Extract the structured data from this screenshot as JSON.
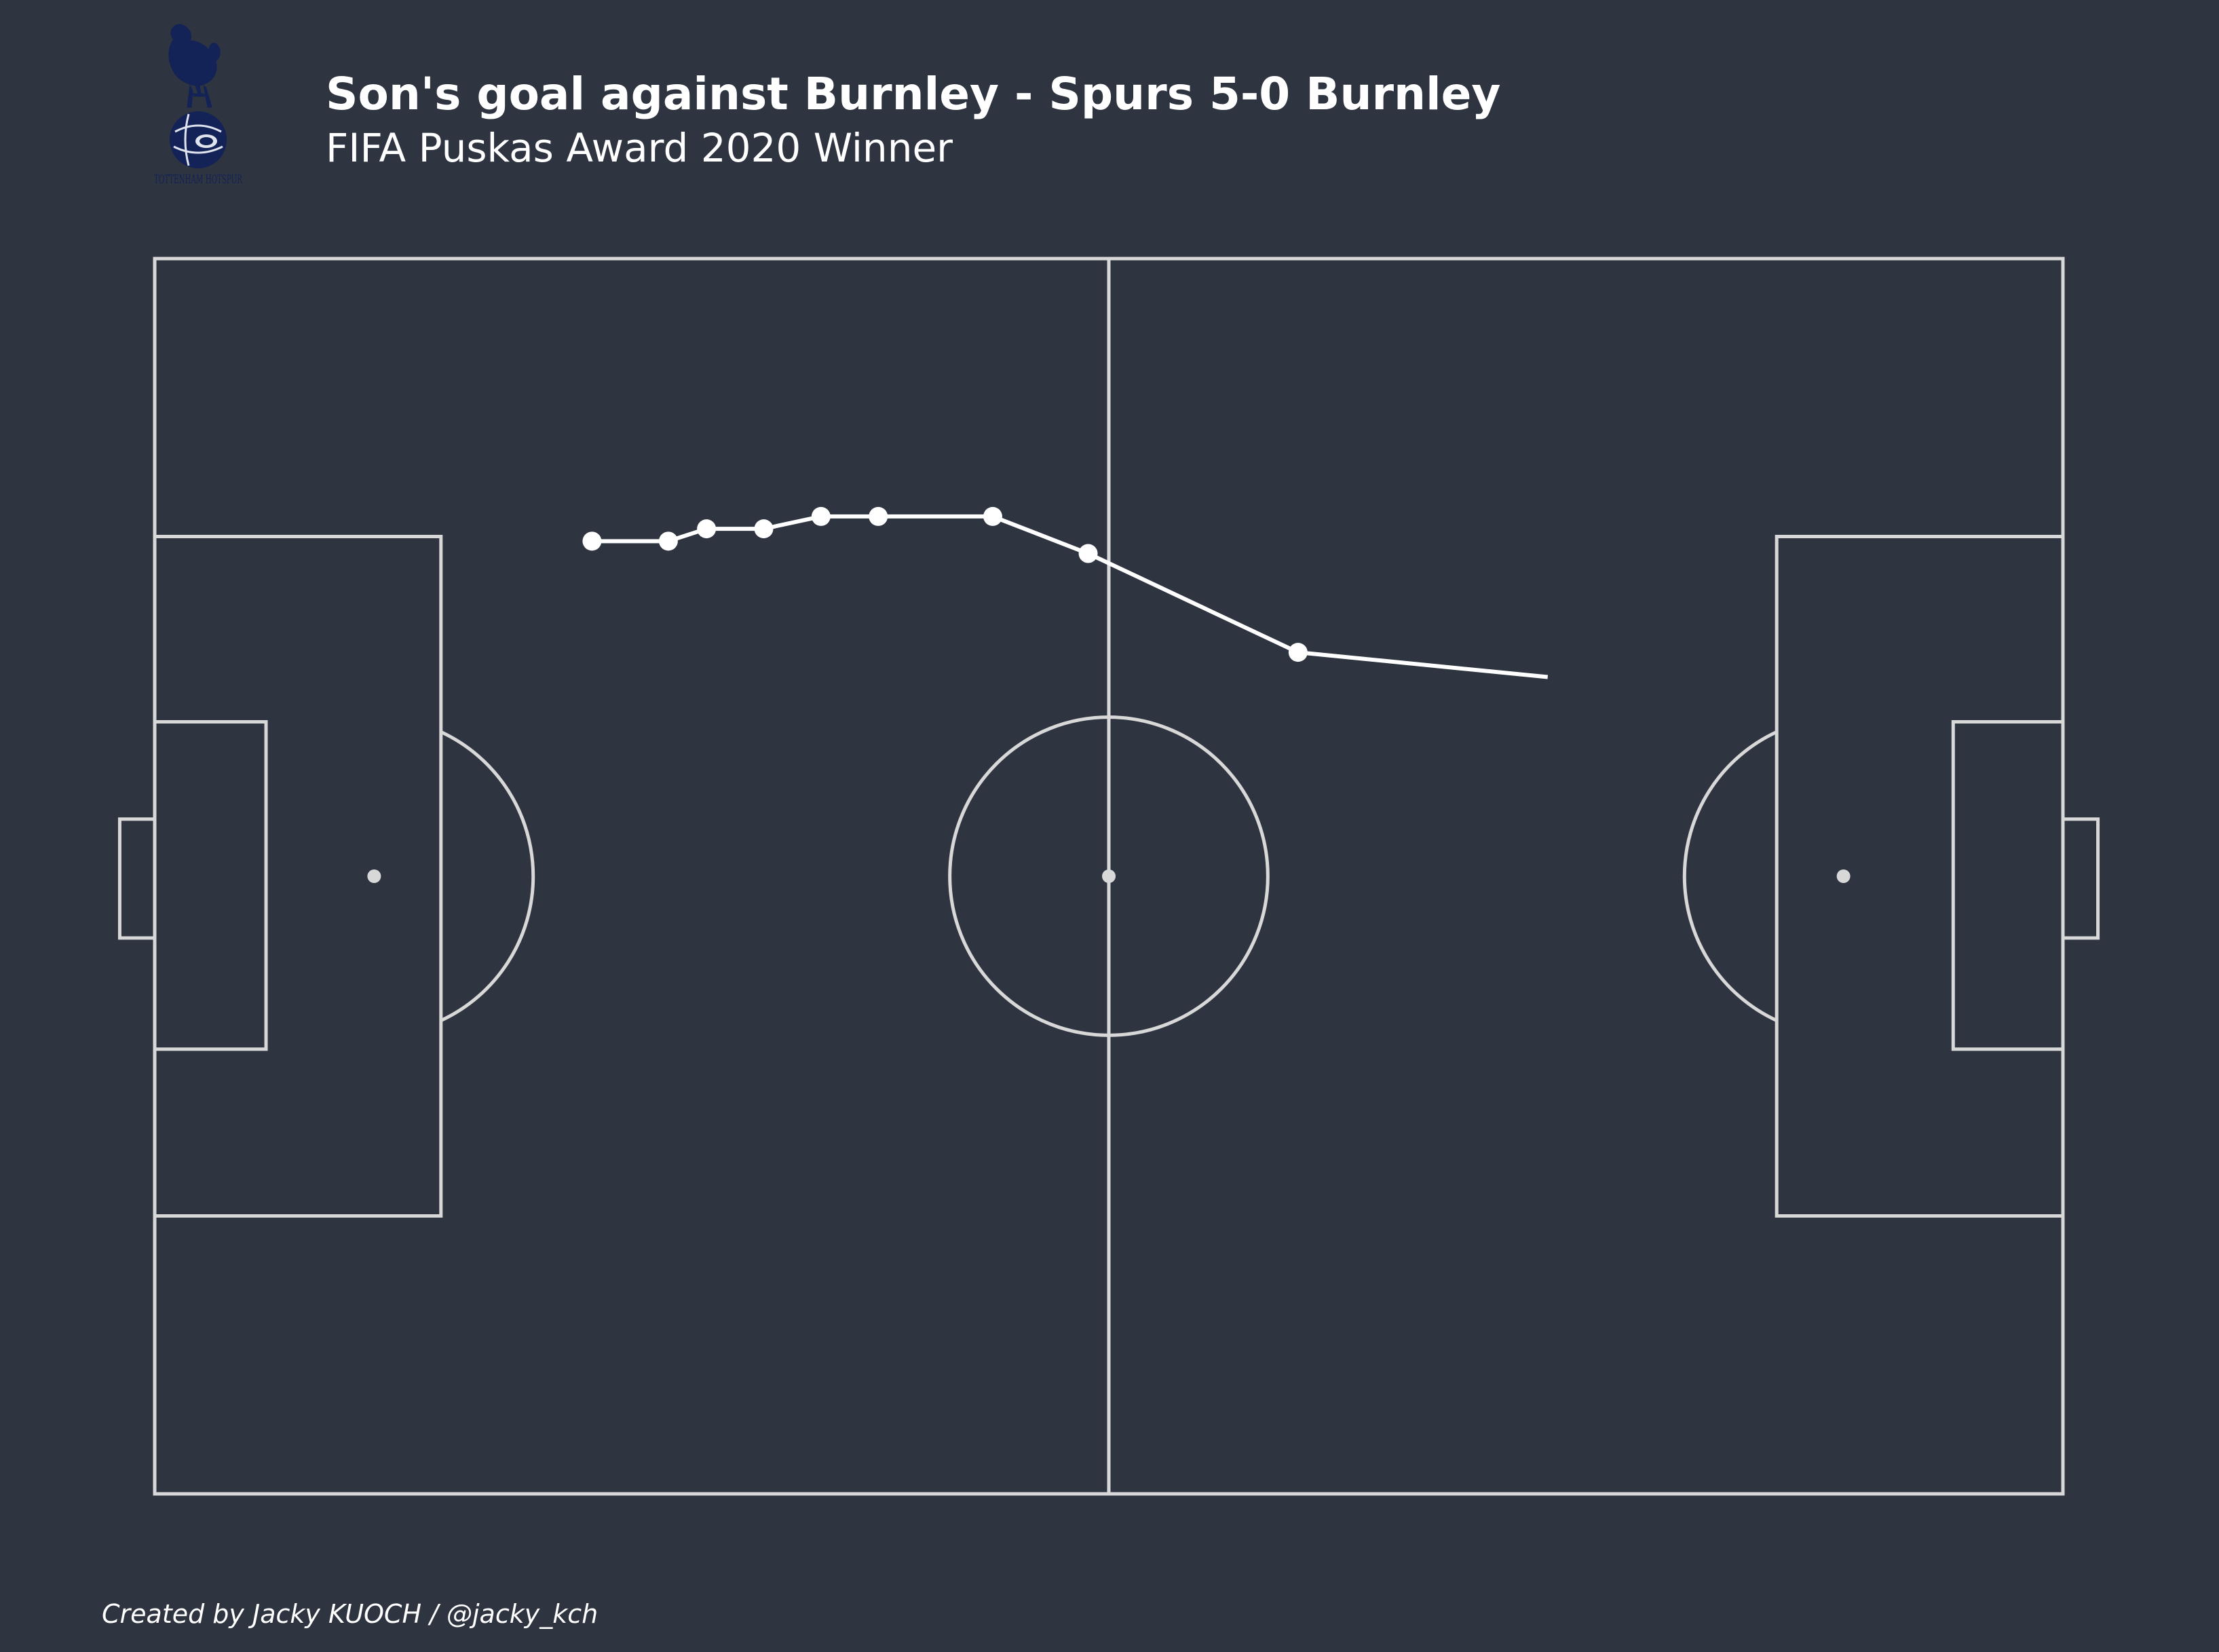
{
  "header": {
    "title": "Son's goal against Burnley - Spurs 5-0 Burnley",
    "subtitle": "FIFA Puskas Award 2020 Winner"
  },
  "footer": {
    "credit": "Created by Jacky KUOCH / @jacky_kch"
  },
  "logo": {
    "icon": "tottenham-hotspur-crest",
    "text": "TOTTENHAM HOTSPUR"
  },
  "colors": {
    "background": "#2e3440",
    "pitch_lines": "#d8d8d8",
    "track": "#ffffff",
    "crest": "#132257"
  },
  "chart_data": {
    "type": "scatter",
    "description_type": "pitch trajectory (line with markers)",
    "pitch": {
      "length": 120,
      "width": 80
    },
    "xlim": [
      0,
      120
    ],
    "ylim": [
      0,
      80
    ],
    "series": [
      {
        "x": [
          27.5,
          32.3,
          34.7,
          38.3,
          41.9,
          45.5,
          52.7,
          58.7,
          71.9,
          87.6
        ],
        "y": [
          18.3,
          18.3,
          17.5,
          17.5,
          16.7,
          16.7,
          16.7,
          19.1,
          25.5,
          27.1
        ],
        "markers": [
          true,
          true,
          true,
          true,
          true,
          true,
          true,
          true,
          true,
          false
        ]
      }
    ]
  }
}
